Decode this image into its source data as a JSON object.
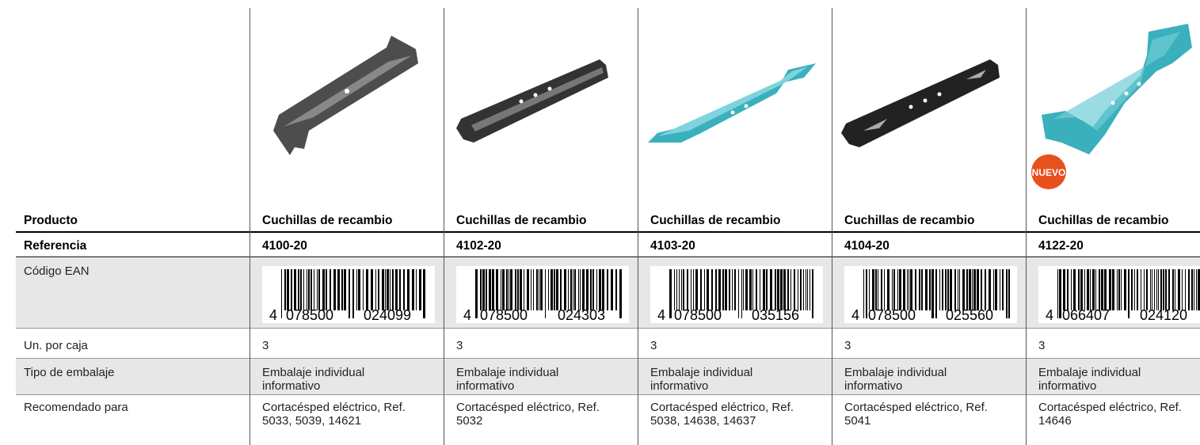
{
  "row_labels": [
    "Producto",
    "Referencia",
    "Código EAN",
    "Un. por caja",
    "Tipo de embalaje",
    "Recomendado para"
  ],
  "products": [
    {
      "name": "Cuchillas de recambio",
      "ref": "4100-20",
      "ean": [
        "4",
        "078500",
        "024099"
      ],
      "units": 3,
      "packaging": "Embalaje individual informativo",
      "recommended": "Cortacésped eléctrico, Ref. 5033, 5039, 14621"
    },
    {
      "name": "Cuchillas de recambio",
      "ref": "4102-20",
      "ean": [
        "4",
        "078500",
        "024303"
      ],
      "units": 3,
      "packaging": "Embalaje individual informativo",
      "recommended": "Cortacésped eléctrico, Ref. 5032"
    },
    {
      "name": "Cuchillas de recambio",
      "ref": "4103-20",
      "ean": [
        "4",
        "078500",
        "035156"
      ],
      "units": 3,
      "packaging": "Embalaje individual informativo",
      "recommended": "Cortacésped eléctrico, Ref. 5038, 14638, 14637"
    },
    {
      "name": "Cuchillas de recambio",
      "ref": "4104-20",
      "ean": [
        "4",
        "078500",
        "025560"
      ],
      "units": 3,
      "packaging": "Embalaje individual informativo",
      "recommended": "Cortacésped eléctrico, Ref. 5041"
    },
    {
      "name": "Cuchillas de recambio",
      "ref": "4122-20",
      "ean": [
        "4",
        "066407",
        "024120"
      ],
      "units": 3,
      "packaging": "Embalaje individual informativo",
      "recommended": "Cortacésped eléctrico, Ref. 14646",
      "badge": "NUEVO"
    }
  ]
}
